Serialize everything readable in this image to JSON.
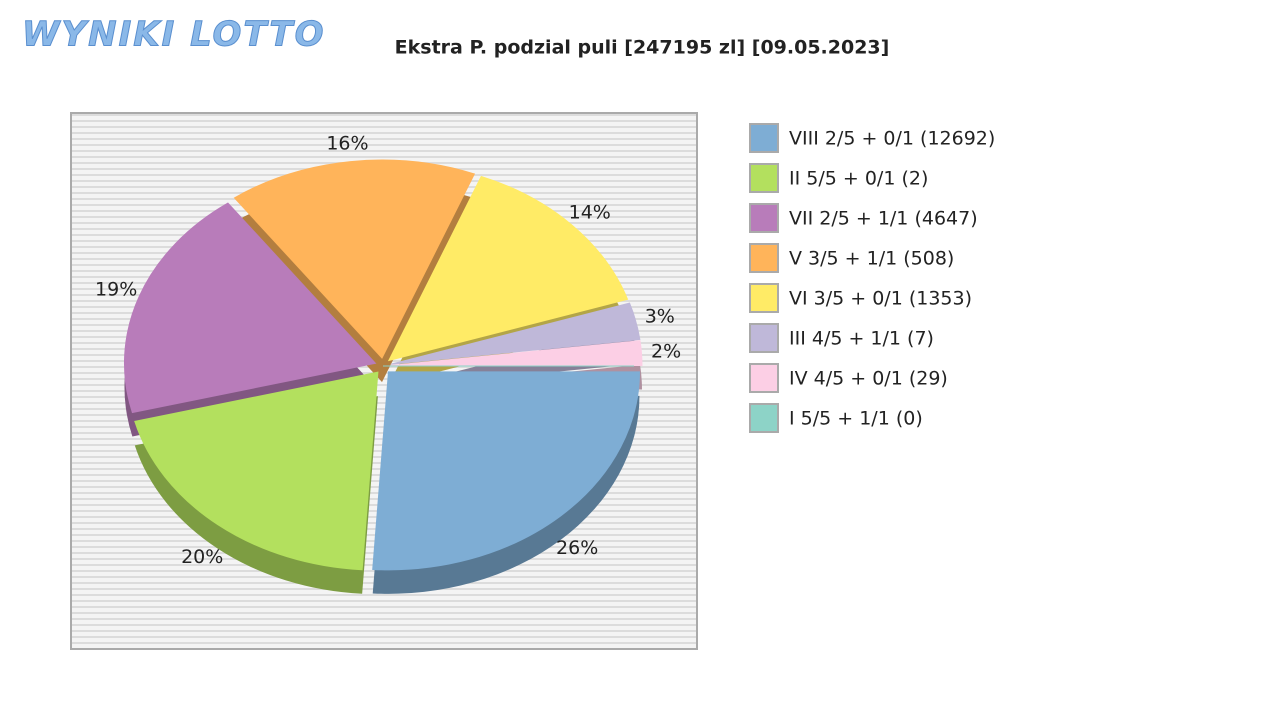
{
  "logo": "WYNIKI LOTTO",
  "chart_data": {
    "type": "pie",
    "title": "Ekstra P. podzial puli [247195 zl] [09.05.2023]",
    "categories": [
      "VIII 2/5 + 0/1 (12692)",
      "II 5/5 + 0/1 (2)",
      "VII 2/5 + 1/1 (4647)",
      "V 3/5 + 1/1 (508)",
      "VI 3/5 + 0/1 (1353)",
      "III 4/5 + 1/1 (7)",
      "IV 4/5 + 0/1 (29)",
      "I 5/5 + 1/1 (0)"
    ],
    "values": [
      26,
      20,
      19,
      16,
      14,
      3,
      2,
      0
    ],
    "value_labels": [
      "26%",
      "20%",
      "19%",
      "16%",
      "14%",
      "3%",
      "2%",
      null
    ],
    "colors": [
      "#7eadd4",
      "#b3e05e",
      "#b87cba",
      "#ffb45a",
      "#ffeb66",
      "#bfb8d9",
      "#fccfe5",
      "#8dd3c7"
    ],
    "legend": "right"
  }
}
